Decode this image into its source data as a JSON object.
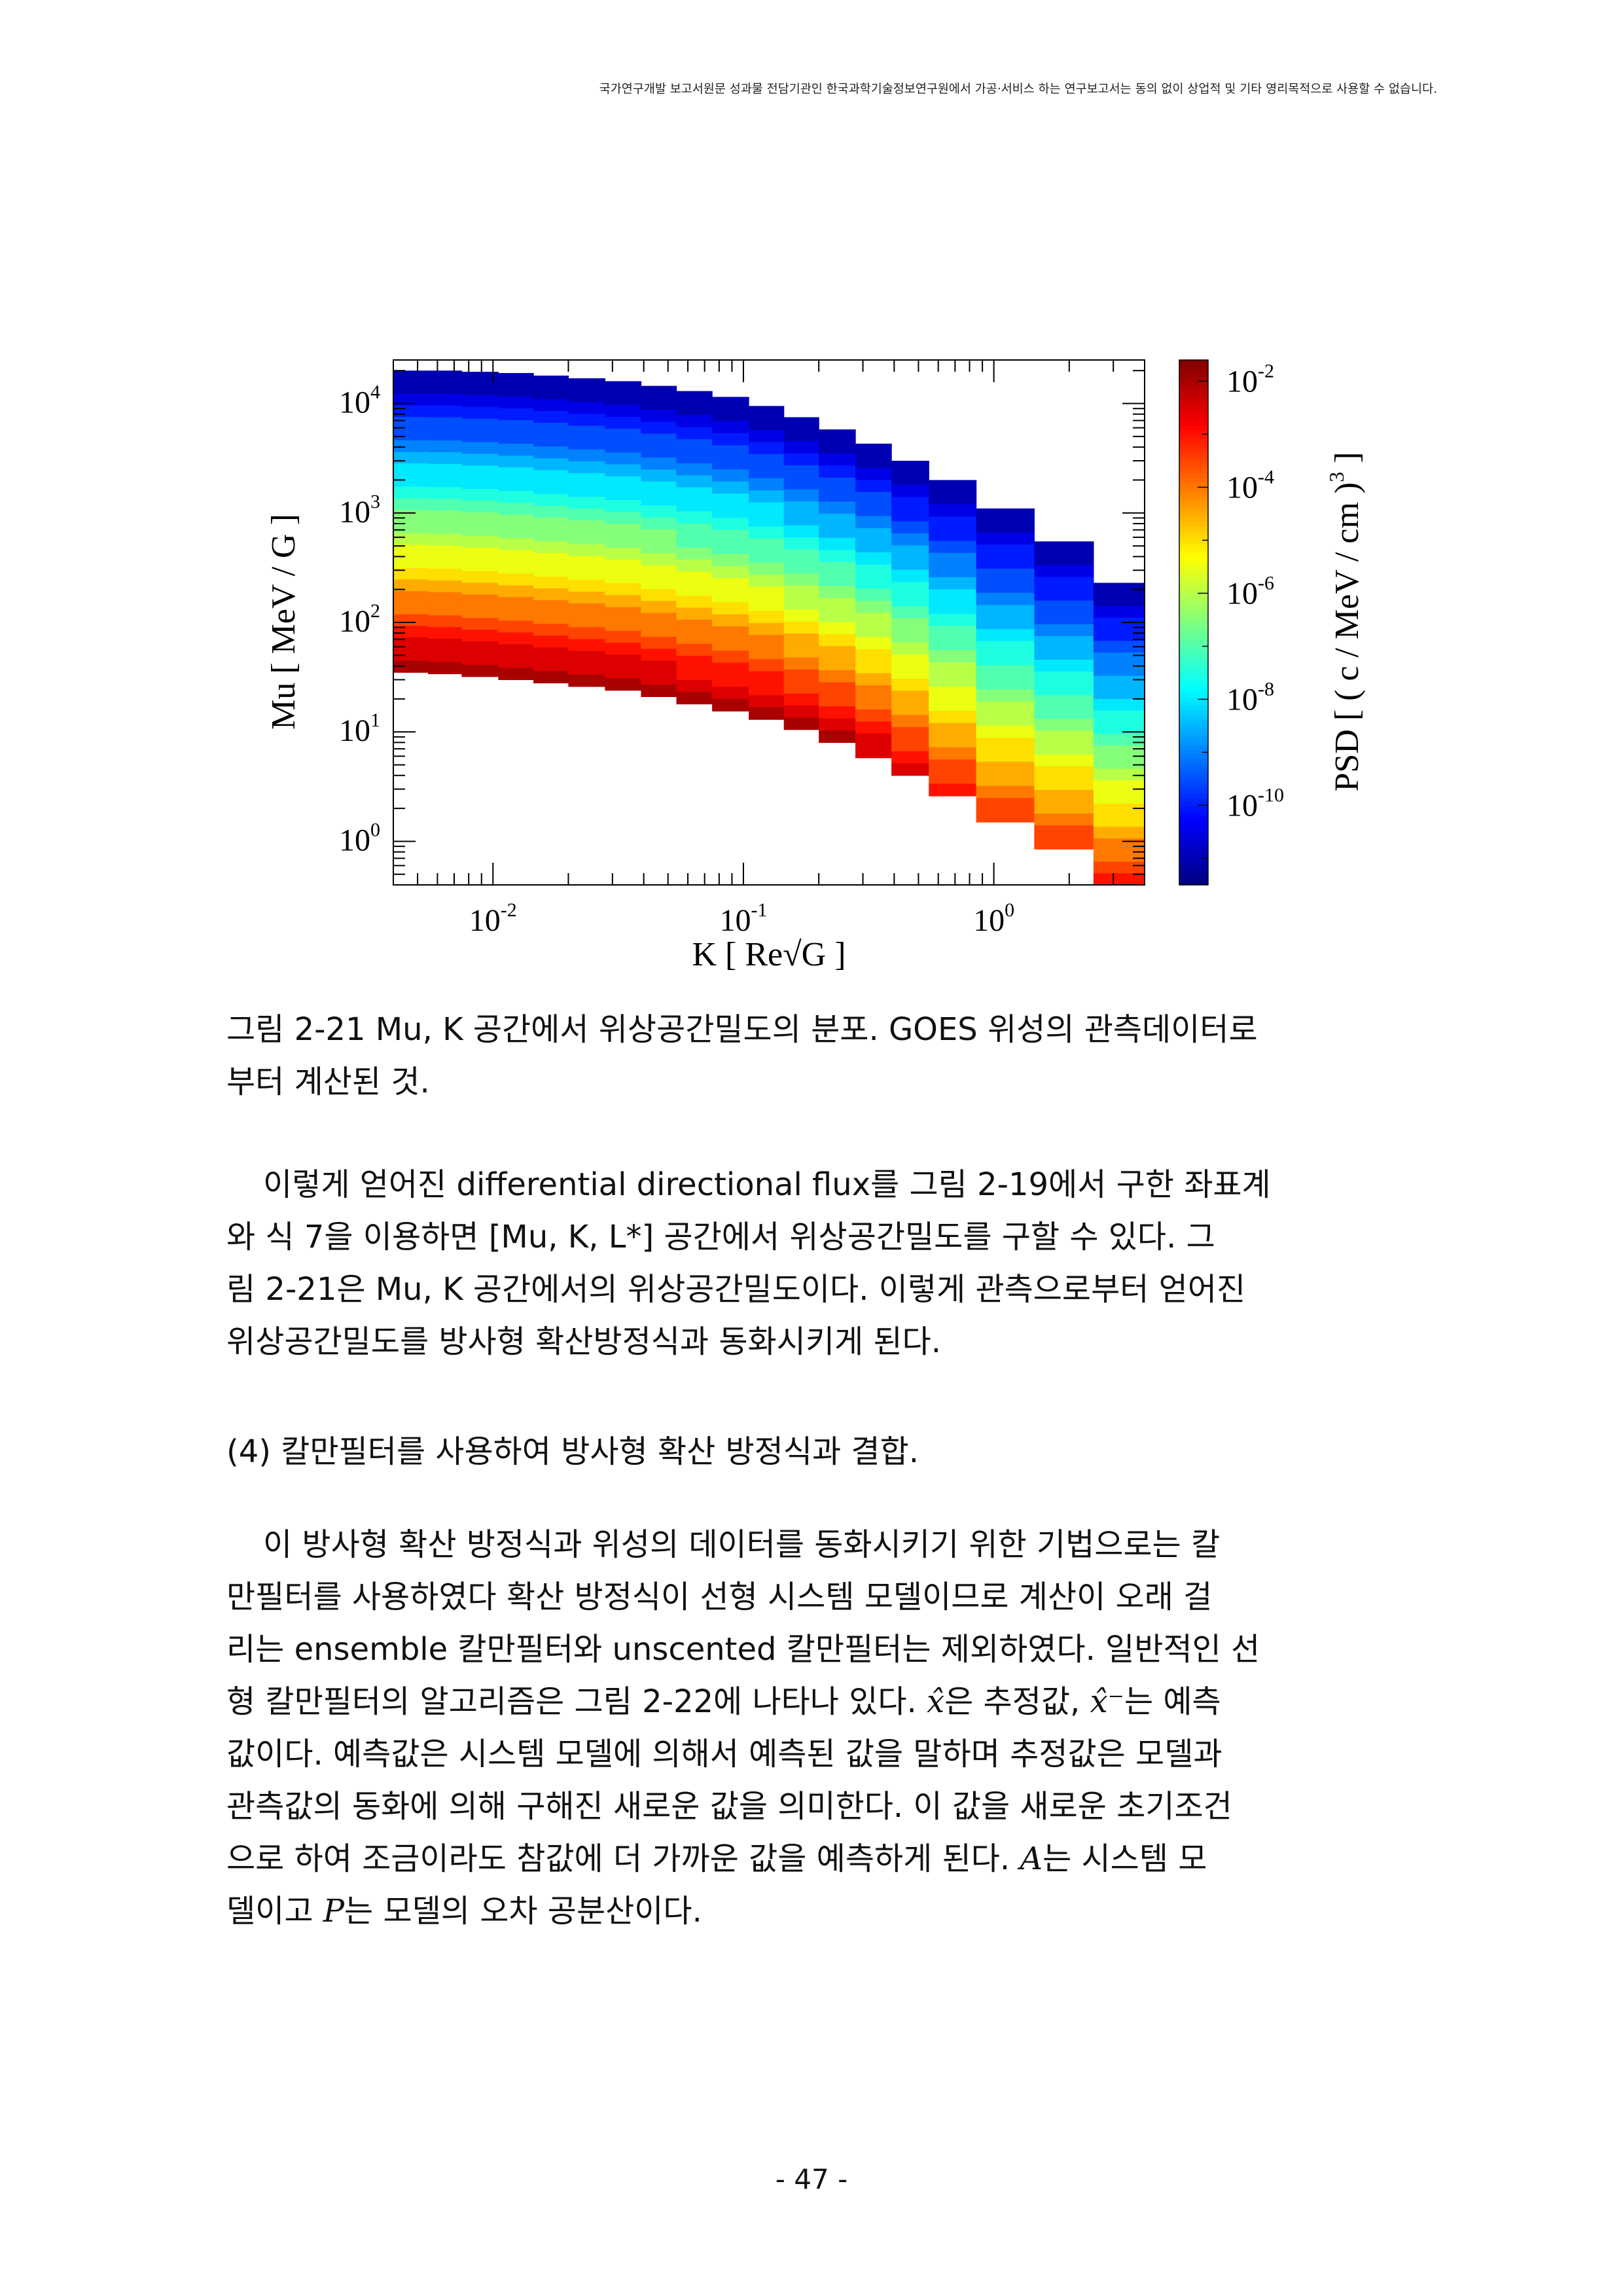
{
  "header": {
    "notice": "국가연구개발 보고서원문 성과물 전담기관인 한국과학기술정보연구원에서 가공·서비스 하는 연구보고서는 동의 없이 상업적 및 기타 영리목적으로 사용할 수 없습니다."
  },
  "figure": {
    "caption_line1": "그림 2-21 Mu, K 공간에서 위상공간밀도의 분포. GOES 위성의 관측데이터로",
    "caption_line2": "부터 계산된 것."
  },
  "chart_data": {
    "type": "heatmap",
    "xlabel": "K [ Re√G ]",
    "ylabel": "Mu [ MeV / G ]",
    "colorbar_label": "PSD [ ( c / MeV / cm )3 ]",
    "x_scale": "log",
    "y_scale": "log",
    "x_ticks": [
      "10-2",
      "10-1",
      "100"
    ],
    "y_ticks": [
      "100",
      "101",
      "102",
      "103",
      "104"
    ],
    "colorbar_ticks": [
      "10-2",
      "10-4",
      "10-6",
      "10-8",
      "10-10"
    ],
    "xlim": [
      0.004,
      4.0
    ],
    "ylim": [
      0.4,
      25000
    ],
    "color_range_log10": [
      -11.5,
      -1.6
    ],
    "colormap": "jet",
    "columns": [
      {
        "k": [
          0.004,
          0.0055
        ],
        "mu_top": 20000,
        "mu_bottom": 35,
        "psd_top_log10": -11.3,
        "psd_bottom_log10": -1.8
      },
      {
        "k": [
          0.0055,
          0.0075
        ],
        "mu_top": 20000,
        "mu_bottom": 34,
        "psd_top_log10": -11.3,
        "psd_bottom_log10": -1.8
      },
      {
        "k": [
          0.0075,
          0.0105
        ],
        "mu_top": 19500,
        "mu_bottom": 32,
        "psd_top_log10": -11.3,
        "psd_bottom_log10": -1.8
      },
      {
        "k": [
          0.0105,
          0.0145
        ],
        "mu_top": 19000,
        "mu_bottom": 30,
        "psd_top_log10": -11.3,
        "psd_bottom_log10": -1.8
      },
      {
        "k": [
          0.0145,
          0.02
        ],
        "mu_top": 18000,
        "mu_bottom": 28,
        "psd_top_log10": -11.3,
        "psd_bottom_log10": -1.8
      },
      {
        "k": [
          0.02,
          0.028
        ],
        "mu_top": 17000,
        "mu_bottom": 26,
        "psd_top_log10": -11.3,
        "psd_bottom_log10": -1.8
      },
      {
        "k": [
          0.028,
          0.039
        ],
        "mu_top": 16000,
        "mu_bottom": 24,
        "psd_top_log10": -11.3,
        "psd_bottom_log10": -1.8
      },
      {
        "k": [
          0.039,
          0.054
        ],
        "mu_top": 14500,
        "mu_bottom": 21,
        "psd_top_log10": -11.3,
        "psd_bottom_log10": -1.8
      },
      {
        "k": [
          0.054,
          0.075
        ],
        "mu_top": 13000,
        "mu_bottom": 18,
        "psd_top_log10": -11.3,
        "psd_bottom_log10": -1.9
      },
      {
        "k": [
          0.075,
          0.105
        ],
        "mu_top": 11500,
        "mu_bottom": 15.5,
        "psd_top_log10": -11.3,
        "psd_bottom_log10": -1.9
      },
      {
        "k": [
          0.105,
          0.145
        ],
        "mu_top": 9500,
        "mu_bottom": 13,
        "psd_top_log10": -11.3,
        "psd_bottom_log10": -1.9
      },
      {
        "k": [
          0.145,
          0.2
        ],
        "mu_top": 7500,
        "mu_bottom": 10.5,
        "psd_top_log10": -11.3,
        "psd_bottom_log10": -2.0
      },
      {
        "k": [
          0.2,
          0.28
        ],
        "mu_top": 5800,
        "mu_bottom": 8,
        "psd_top_log10": -11.3,
        "psd_bottom_log10": -2.0
      },
      {
        "k": [
          0.28,
          0.39
        ],
        "mu_top": 4300,
        "mu_bottom": 5.8,
        "psd_top_log10": -11.3,
        "psd_bottom_log10": -2.2
      },
      {
        "k": [
          0.39,
          0.55
        ],
        "mu_top": 3000,
        "mu_bottom": 4.0,
        "psd_top_log10": -11.3,
        "psd_bottom_log10": -2.4
      },
      {
        "k": [
          0.55,
          0.85
        ],
        "mu_top": 2000,
        "mu_bottom": 2.6,
        "psd_top_log10": -11.3,
        "psd_bottom_log10": -2.8
      },
      {
        "k": [
          0.85,
          1.45
        ],
        "mu_top": 1100,
        "mu_bottom": 1.5,
        "psd_top_log10": -11.3,
        "psd_bottom_log10": -3.2
      },
      {
        "k": [
          1.45,
          2.5
        ],
        "mu_top": 550,
        "mu_bottom": 0.85,
        "psd_top_log10": -11.3,
        "psd_bottom_log10": -3.2
      },
      {
        "k": [
          2.5,
          4.0
        ],
        "mu_top": 230,
        "mu_bottom": 0.4,
        "psd_top_log10": -11.3,
        "psd_bottom_log10": -3.0
      }
    ]
  },
  "body": {
    "para1_lines": [
      "이렇게 얻어진 differential directional flux를 그림 2-19에서 구한 좌표계",
      "와 식 7을 이용하면 [Mu, K, L*] 공간에서 위상공간밀도를 구할 수 있다. 그",
      "림 2-21은 Mu, K 공간에서의 위상공간밀도이다. 이렇게 관측으로부터 얻어진",
      "위상공간밀도를 방사형 확산방정식과 동화시키게 된다."
    ],
    "heading": "(4) 칼만필터를 사용하여 방사형 확산 방정식과 결합.",
    "para2_line1": "이 방사형 확산 방정식과 위성의 데이터를 동화시키기 위한 기법으로는 칼",
    "para2_line2": "만필터를 사용하였다 확산 방정식이 선형 시스템 모델이므로 계산이 오래 걸",
    "para2_line3": "리는 ensemble 칼만필터와 unscented 칼만필터는 제외하였다. 일반적인 선",
    "para2_line4_a": "형 칼만필터의 알고리즘은 그림 2-22에 나타나 있다.",
    "para2_line4_sym1": "x̂",
    "para2_line4_b": "은 추정값,",
    "para2_line4_sym2": "x̂⁻",
    "para2_line4_c": "는 예측",
    "para2_line5": "값이다. 예측값은 시스템 모델에 의해서 예측된 값을 말하며 추정값은 모델과",
    "para2_line6": "관측값의 동화에 의해 구해진 새로운 값을 의미한다. 이 값을 새로운 초기조건",
    "para2_line7_a": "으로 하여 조금이라도 참값에 더 가까운 값을 예측하게 된다.",
    "para2_line7_sym": "A",
    "para2_line7_b": "는 시스템 모",
    "para2_line8_a": "델이고",
    "para2_line8_sym": "P",
    "para2_line8_b": "는 모델의 오차 공분산이다."
  },
  "footer": {
    "page_number": "- 47 -"
  }
}
